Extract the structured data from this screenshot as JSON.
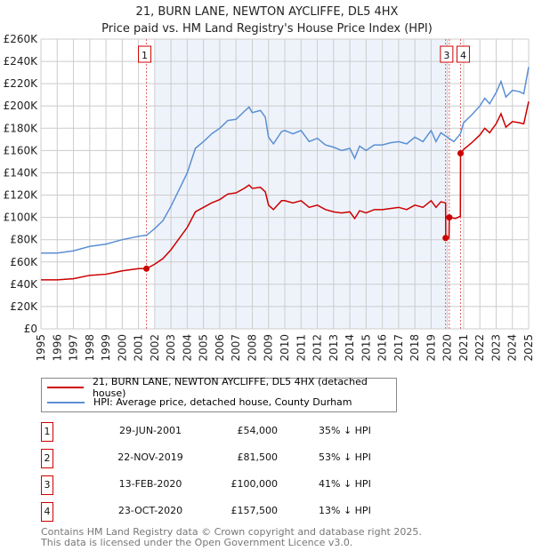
{
  "chart_data": {
    "type": "line",
    "title": "21, BURN LANE, NEWTON AYCLIFFE, DL5 4HX",
    "subtitle": "Price paid vs. HM Land Registry's House Price Index (HPI)",
    "xlim": [
      1995,
      2025
    ],
    "ylim": [
      0,
      260000
    ],
    "y_ticks": [
      "£0",
      "£20K",
      "£40K",
      "£60K",
      "£80K",
      "£100K",
      "£120K",
      "£140K",
      "£160K",
      "£180K",
      "£200K",
      "£220K",
      "£240K",
      "£260K"
    ],
    "x_ticks": [
      "1995",
      "1996",
      "1997",
      "1998",
      "1999",
      "2000",
      "2001",
      "2002",
      "2003",
      "2004",
      "2005",
      "2006",
      "2007",
      "2008",
      "2009",
      "2010",
      "2011",
      "2012",
      "2013",
      "2014",
      "2015",
      "2016",
      "2017",
      "2018",
      "2019",
      "2020",
      "2021",
      "2022",
      "2023",
      "2024",
      "2025"
    ],
    "grid": true,
    "shaded_range": [
      2002,
      2020
    ],
    "series": [
      {
        "name": "21, BURN LANE, NEWTON AYCLIFFE, DL5 4HX (detached house)",
        "color": "#cc0000",
        "x": [
          1995,
          1996,
          1997,
          1998,
          1999,
          2000,
          2001,
          2001.49,
          2002,
          2002.5,
          2003,
          2003.5,
          2004,
          2004.5,
          2005,
          2005.5,
          2006,
          2006.5,
          2007,
          2007.5,
          2007.8,
          2008,
          2008.5,
          2008.8,
          2009,
          2009.3,
          2009.8,
          2010,
          2010.5,
          2011,
          2011.5,
          2012,
          2012.5,
          2013,
          2013.5,
          2014,
          2014.3,
          2014.6,
          2015,
          2015.5,
          2016,
          2016.5,
          2017,
          2017.5,
          2018,
          2018.5,
          2019,
          2019.3,
          2019.6,
          2019.89,
          2019.9,
          2020.1,
          2020.12,
          2020.5,
          2020.8,
          2020.81,
          2021,
          2021.5,
          2022,
          2022.3,
          2022.6,
          2023,
          2023.3,
          2023.6,
          2024,
          2024.4,
          2024.7,
          2025
        ],
        "y": [
          44000,
          44000,
          45000,
          48000,
          49000,
          52000,
          54000,
          54000,
          58000,
          63000,
          71000,
          81000,
          91000,
          105000,
          109000,
          113000,
          116000,
          121000,
          122000,
          126000,
          129000,
          126000,
          127000,
          123000,
          111000,
          107000,
          115000,
          115000,
          113000,
          115000,
          109000,
          111000,
          107000,
          105000,
          104000,
          105000,
          99000,
          106000,
          104000,
          107000,
          107000,
          108000,
          109000,
          107000,
          111000,
          109000,
          115000,
          109000,
          114000,
          113000,
          81500,
          81500,
          100000,
          99000,
          101000,
          157500,
          161000,
          167000,
          174000,
          180000,
          176000,
          184000,
          193000,
          181000,
          186000,
          185000,
          184000,
          204000
        ]
      },
      {
        "name": "HPI: Average price, detached house, County Durham",
        "color": "#5b8fd4",
        "x": [
          1995,
          1996,
          1997,
          1998,
          1999,
          2000,
          2001,
          2001.5,
          2002,
          2002.5,
          2003,
          2003.5,
          2004,
          2004.5,
          2005,
          2005.5,
          2006,
          2006.5,
          2007,
          2007.5,
          2007.8,
          2008,
          2008.5,
          2008.8,
          2009,
          2009.3,
          2009.8,
          2010,
          2010.5,
          2011,
          2011.5,
          2012,
          2012.5,
          2013,
          2013.5,
          2014,
          2014.3,
          2014.6,
          2015,
          2015.5,
          2016,
          2016.5,
          2017,
          2017.5,
          2018,
          2018.5,
          2019,
          2019.3,
          2019.6,
          2020,
          2020.4,
          2020.8,
          2021,
          2021.5,
          2022,
          2022.3,
          2022.6,
          2023,
          2023.3,
          2023.6,
          2024,
          2024.4,
          2024.7,
          2025
        ],
        "y": [
          68000,
          68000,
          70000,
          74000,
          76000,
          80000,
          83000,
          84000,
          90000,
          97000,
          110000,
          125000,
          140000,
          162000,
          168000,
          175000,
          180000,
          187000,
          188000,
          195000,
          199000,
          194000,
          196000,
          190000,
          172000,
          166000,
          177000,
          178000,
          175000,
          178000,
          168000,
          171000,
          165000,
          163000,
          160000,
          162000,
          153000,
          164000,
          160000,
          165000,
          165000,
          167000,
          168000,
          166000,
          172000,
          168000,
          178000,
          168000,
          176000,
          172000,
          168000,
          175000,
          185000,
          192000,
          200000,
          207000,
          202000,
          212000,
          222000,
          208000,
          214000,
          213000,
          211000,
          235000
        ]
      }
    ],
    "sales": [
      {
        "num": "1",
        "date": "29-JUN-2001",
        "x": 2001.49,
        "price": "£54,000",
        "value": 54000,
        "hpi": "35% ↓ HPI"
      },
      {
        "num": "2",
        "date": "22-NOV-2019",
        "x": 2019.89,
        "price": "£81,500",
        "value": 81500,
        "hpi": "53% ↓ HPI"
      },
      {
        "num": "3",
        "date": "13-FEB-2020",
        "x": 2020.12,
        "price": "£100,000",
        "value": 100000,
        "hpi": "41% ↓ HPI"
      },
      {
        "num": "4",
        "date": "23-OCT-2020",
        "x": 2020.81,
        "price": "£157,500",
        "value": 157500,
        "hpi": "13% ↓ HPI"
      }
    ]
  },
  "footer": {
    "line1": "Contains HM Land Registry data © Crown copyright and database right 2025.",
    "line2": "This data is licensed under the Open Government Licence v3.0."
  }
}
